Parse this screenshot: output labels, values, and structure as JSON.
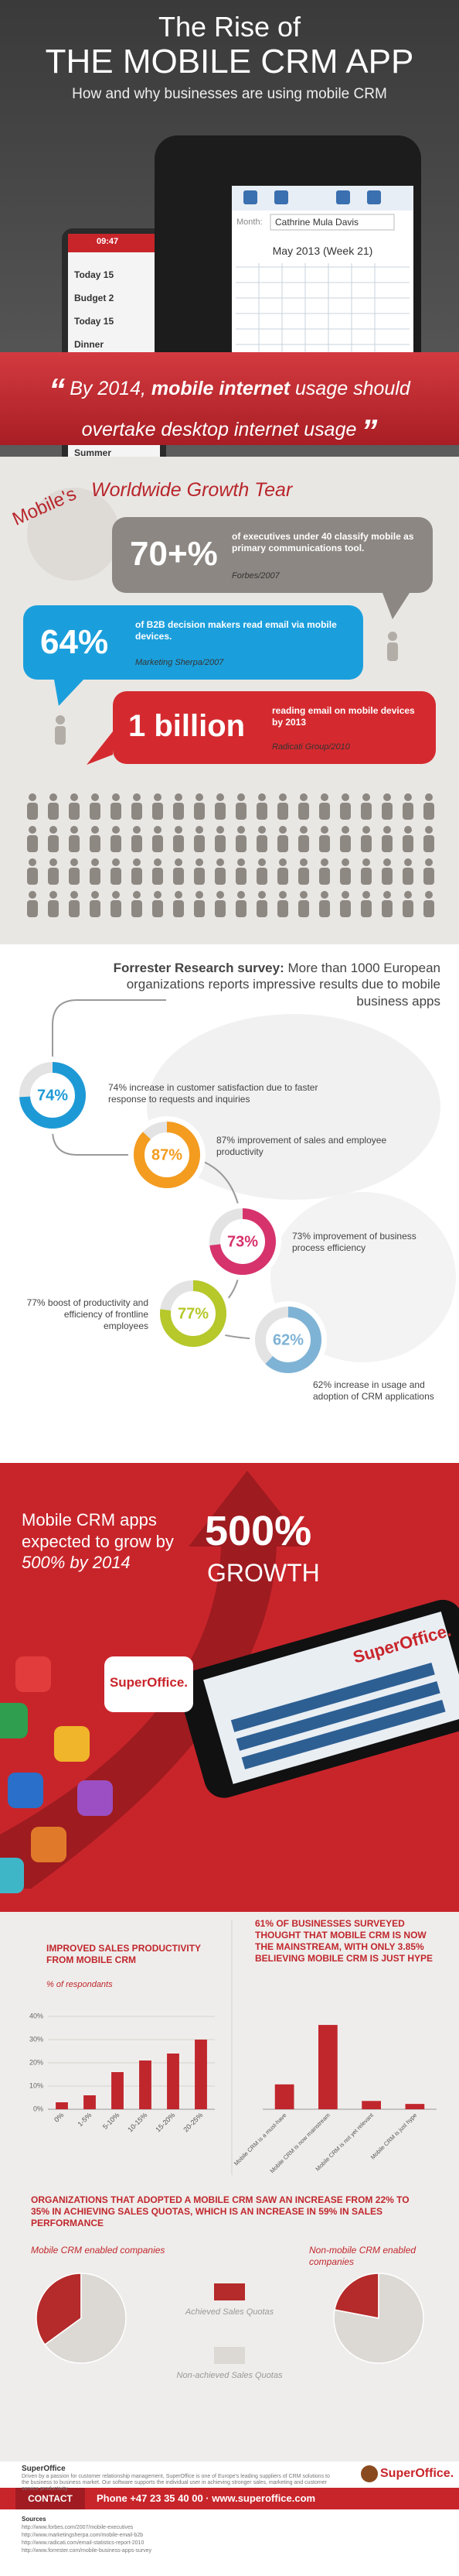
{
  "header": {
    "title_line1": "The Rise of",
    "title_line2": "THE MOBILE CRM APP",
    "subtitle": "How and why businesses are using mobile CRM",
    "screen_left": [
      "09:47",
      "Today 15",
      "Budget 2",
      "Today 15",
      "Dinner",
      "Summer"
    ],
    "screen_right": [
      "Month:",
      "Cathrine Mula Davis",
      "May 2013 (Week 21)"
    ],
    "quote": {
      "open": "“",
      "parts": [
        "By 2014, ",
        "mobile internet",
        " usage should overtake desktop internet usage"
      ],
      "close": "”"
    }
  },
  "growth": {
    "title_arc": "Mobile's",
    "title": "Worldwide Growth Tear",
    "stats": [
      {
        "figure": "70+%",
        "text": "of executives under 40 classify mobile as primary communications tool.",
        "source": "Forbes/2007",
        "color": "#8c8782"
      },
      {
        "figure": "64%",
        "text": "of B2B decision makers read email via mobile devices.",
        "source": "Marketing Sherpa/2007",
        "color": "#1b9fdc"
      },
      {
        "figure": "1 billion",
        "text": "reading email on mobile devices by 2013",
        "source": "Radicati Group/2010",
        "color": "#d42a2f"
      }
    ]
  },
  "survey": {
    "title_bold": "Forrester Research survey:",
    "title": " More than 1000 European organizations reports impressive results due to mobile business apps",
    "items": [
      {
        "value": 74,
        "label": "74%",
        "text": "74% increase in customer satisfaction due to faster response to requests and inquiries",
        "color": "#1d9ad6"
      },
      {
        "value": 87,
        "label": "87%",
        "text": "87% improvement of sales and employee productivity",
        "color": "#f39c1f"
      },
      {
        "value": 73,
        "label": "73%",
        "text": "73% improvement of business process efficiency",
        "color": "#d6336c"
      },
      {
        "value": 77,
        "label": "77%",
        "text": "77% boost of productivity and efficiency of frontline employees",
        "color": "#b6c82a"
      },
      {
        "value": 62,
        "label": "62%",
        "text": "62% increase in usage and adoption of CRM applications",
        "color": "#7fb3d5"
      }
    ]
  },
  "forecast": {
    "text_parts": [
      "Mobile CRM apps expected to grow by ",
      "500% by 2014"
    ],
    "figure": "500%",
    "word": "GROWTH"
  },
  "logo": "SuperOffice.",
  "chart_data": [
    {
      "type": "bar",
      "title": "IMPROVED SALES PRODUCTIVITY FROM MOBILE CRM",
      "subtitle": "% of respondants",
      "categories": [
        "0%",
        "1-5%",
        "5-10%",
        "10-15%",
        "15-20%",
        "20-25%"
      ],
      "values": [
        3,
        6,
        16,
        21,
        24,
        30
      ],
      "color": "#c0272d",
      "ylim": [
        0,
        40
      ],
      "grid": true,
      "yticks": [
        {
          "value": 0,
          "label": "0%"
        },
        {
          "value": 10,
          "label": "10%"
        },
        {
          "value": 20,
          "label": "20%"
        },
        {
          "value": 30,
          "label": "30%"
        },
        {
          "value": 40,
          "label": "40%"
        }
      ]
    },
    {
      "type": "bar",
      "title": "61% OF BUSINESSES SURVEYED THOUGHT THAT MOBILE CRM IS NOW THE MAINSTREAM, WITH ONLY 3.85% BELIEVING MOBILE CRM IS JUST HYPE",
      "categories": [
        "Mobile CRM is a must-have",
        "Mobile CRM is now mainstream",
        "Mobile CRM is not yet relevant",
        "Mobile CRM is just hype"
      ],
      "values": [
        18,
        61,
        6,
        3.85
      ],
      "color": "#c0272d",
      "ylim": [
        0,
        70
      ]
    },
    {
      "type": "pie",
      "heading": "ORGANIZATIONS THAT ADOPTED A MOBILE CRM SAW AN INCREASE FROM 22% TO 35% IN ACHIEVING SALES QUOTAS, WHICH IS AN INCREASE IN 59% IN SALES PERFORMANCE",
      "title": "Mobile CRM enabled companies",
      "categories": [
        "Achieved Sales Quotas",
        "Non-achieved Sales Quotas"
      ],
      "values": [
        35,
        65
      ],
      "colors": [
        "#b52a2a",
        "#dcd8d4"
      ]
    },
    {
      "type": "pie",
      "title": "Non-mobile CRM enabled companies",
      "values": [
        22,
        78
      ],
      "colors": [
        "#b52a2a",
        "#dcd8d4"
      ]
    }
  ],
  "footer": {
    "company": "SuperOffice",
    "description": "Driven by a passion for customer relationship management, SuperOffice is one of Europe's leading suppliers of CRM solutions to the business to business market. Our software supports the individual user in achieving stronger sales, marketing and customer service productivity.",
    "contact": "CONTACT",
    "phone": "Phone +47 23 35 40 00 · www.superoffice.com",
    "sources_title": "Sources",
    "sources": [
      "http://www.forbes.com/2007/mobile-executives",
      "http://www.marketingsherpa.com/mobile-email-b2b",
      "http://www.radicati.com/email-statistics-report-2010",
      "http://www.forrester.com/mobile-business-apps-survey"
    ]
  }
}
